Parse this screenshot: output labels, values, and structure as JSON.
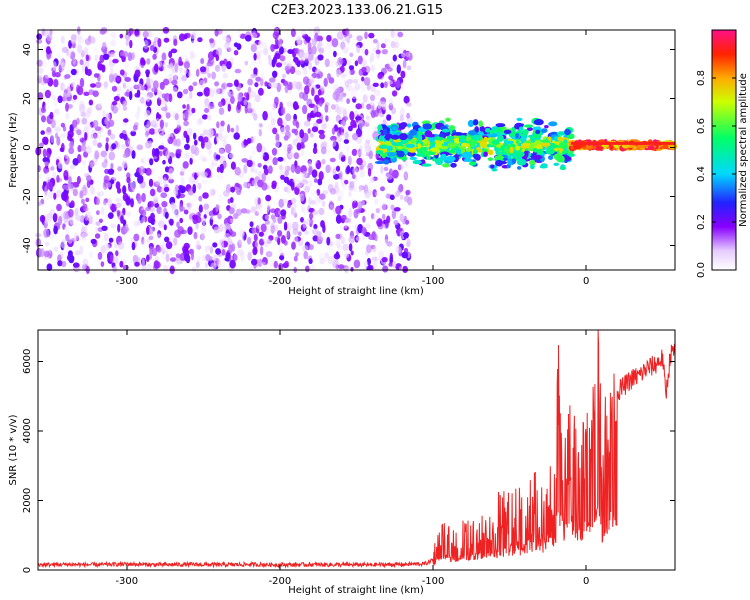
{
  "title": "C2E3.2023.133.06.21.G15",
  "chart_data": [
    {
      "type": "heatmap",
      "xlabel": "Height of straight line (km)",
      "ylabel": "Frequency (Hz)",
      "xlim": [
        -358,
        58
      ],
      "ylim": [
        -50,
        48
      ],
      "xticks": [
        -300,
        -200,
        -100,
        0
      ],
      "xtick_labels": [
        "-300",
        "-200",
        "-100",
        "0"
      ],
      "yticks": [
        -40,
        -20,
        0,
        20,
        40
      ],
      "ytick_labels": [
        "-40",
        "-20",
        "0",
        "20",
        "40"
      ],
      "grid": false,
      "colorbar": {
        "label": "Normalized spectral amplitude",
        "range": [
          0,
          1
        ],
        "ticks": [
          0.0,
          0.2,
          0.4,
          0.6,
          0.8
        ],
        "tick_labels": [
          "0.0",
          "0.2",
          "0.4",
          "0.6",
          "0.8"
        ],
        "colormap_stops": [
          {
            "value": 0.0,
            "color": "#ffffff"
          },
          {
            "value": 0.08,
            "color": "#e6ccff"
          },
          {
            "value": 0.18,
            "color": "#8800ff"
          },
          {
            "value": 0.28,
            "color": "#2222ff"
          },
          {
            "value": 0.4,
            "color": "#00d8ff"
          },
          {
            "value": 0.55,
            "color": "#00ff66"
          },
          {
            "value": 0.7,
            "color": "#ccff00"
          },
          {
            "value": 0.8,
            "color": "#ffaa00"
          },
          {
            "value": 0.9,
            "color": "#ff2200"
          },
          {
            "value": 1.0,
            "color": "#ff1188"
          }
        ]
      },
      "regions": [
        {
          "x_range": [
            -358,
            -115
          ],
          "y_range": [
            -50,
            48
          ],
          "amplitude_range": [
            0.02,
            0.22
          ],
          "pattern": "scattered noise"
        },
        {
          "x_range": [
            -135,
            -10
          ],
          "y_range": [
            -15,
            12
          ],
          "amplitude_range": [
            0.2,
            0.6
          ],
          "pattern": "signal band around 0 Hz"
        },
        {
          "x_range": [
            -10,
            58
          ],
          "y_range": [
            -2,
            4
          ],
          "amplitude_range": [
            0.7,
            1.0
          ],
          "pattern": "strong narrow line at 0–2 Hz"
        }
      ]
    },
    {
      "type": "line",
      "xlabel": "Height of straight line (km)",
      "ylabel": "SNR (10 * v/v)",
      "xlim": [
        -358,
        58
      ],
      "ylim": [
        0,
        6900
      ],
      "xticks": [
        -300,
        -200,
        -100,
        0
      ],
      "xtick_labels": [
        "-300",
        "-200",
        "-100",
        "0"
      ],
      "yticks": [
        0,
        2000,
        4000,
        6000
      ],
      "ytick_labels": [
        "0",
        "2000",
        "4000",
        "6000"
      ],
      "grid": false,
      "series": [
        {
          "color": "#ee2222",
          "x": [
            -358,
            -340,
            -320,
            -300,
            -280,
            -260,
            -240,
            -220,
            -200,
            -180,
            -160,
            -140,
            -120,
            -105,
            -100,
            -98,
            -95,
            -90,
            -85,
            -80,
            -75,
            -70,
            -65,
            -60,
            -55,
            -50,
            -45,
            -40,
            -35,
            -30,
            -25,
            -20,
            -18,
            -16,
            -14,
            -12,
            -10,
            -8,
            -6,
            -4,
            -2,
            0,
            2,
            4,
            6,
            8,
            9,
            10,
            12,
            14,
            16,
            18,
            20,
            25,
            30,
            35,
            40,
            45,
            50,
            52,
            55,
            58
          ],
          "y": [
            150,
            160,
            150,
            170,
            150,
            160,
            150,
            160,
            150,
            155,
            150,
            150,
            160,
            180,
            300,
            600,
            900,
            1000,
            900,
            1100,
            1000,
            1200,
            1300,
            1200,
            1500,
            1400,
            1700,
            1600,
            2000,
            1800,
            2200,
            2400,
            5600,
            3200,
            2800,
            3600,
            4000,
            3000,
            3400,
            2500,
            3000,
            3300,
            3800,
            4200,
            5200,
            6900,
            5800,
            2000,
            4000,
            3600,
            5000,
            4700,
            5100,
            5300,
            5500,
            5600,
            5800,
            5900,
            6100,
            5000,
            6200,
            6300
          ],
          "noise_envelope": [
            {
              "x_range": [
                -358,
                -100
              ],
              "amplitude": 60
            },
            {
              "x_range": [
                -100,
                -60
              ],
              "amplitude": 400
            },
            {
              "x_range": [
                -60,
                -20
              ],
              "amplitude": 900
            },
            {
              "x_range": [
                -20,
                0
              ],
              "amplitude": 1400
            },
            {
              "x_range": [
                0,
                20
              ],
              "amplitude": 1100
            },
            {
              "x_range": [
                20,
                58
              ],
              "amplitude": 300
            }
          ]
        }
      ]
    }
  ]
}
